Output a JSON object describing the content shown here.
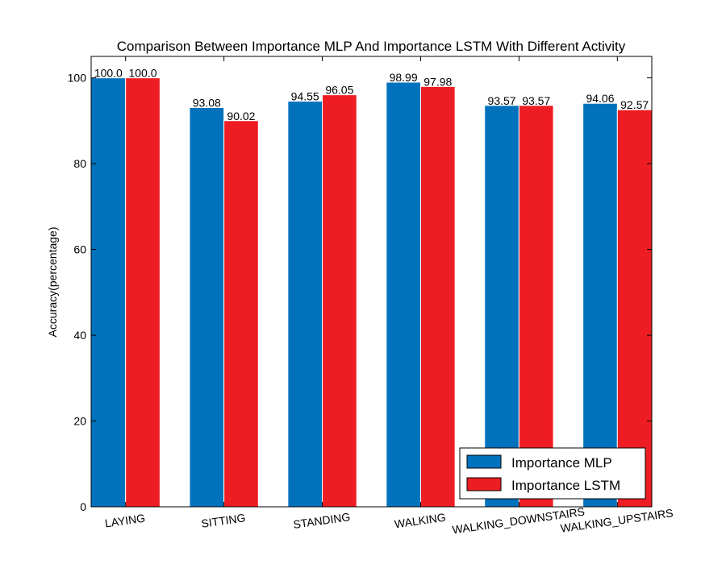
{
  "chart_data": {
    "type": "bar",
    "title": "Comparison Between Importance MLP And Importance LSTM With Different Activity",
    "xlabel": "",
    "ylabel": "Accuracy(percentage)",
    "ylim": [
      0,
      105
    ],
    "yticks": [
      0,
      20,
      40,
      60,
      80,
      100
    ],
    "categories": [
      "LAYING",
      "SITTING",
      "STANDING",
      "WALKING",
      "WALKING_DOWNSTAIRS",
      "WALKING_UPSTAIRS"
    ],
    "series": [
      {
        "name": "Importance MLP",
        "color": "#0072bd",
        "values": [
          100.0,
          93.08,
          94.55,
          98.99,
          93.57,
          94.06
        ],
        "labels": [
          "100.0",
          "93.08",
          "94.55",
          "98.99",
          "93.57",
          "94.06"
        ]
      },
      {
        "name": "Importance LSTM",
        "color": "#ee1d23",
        "values": [
          100.0,
          90.02,
          96.05,
          97.98,
          93.57,
          92.57
        ],
        "labels": [
          "100.0",
          "90.02",
          "96.05",
          "97.98",
          "93.57",
          "92.57"
        ]
      }
    ],
    "legend_position": "lower-right",
    "grid": false
  }
}
